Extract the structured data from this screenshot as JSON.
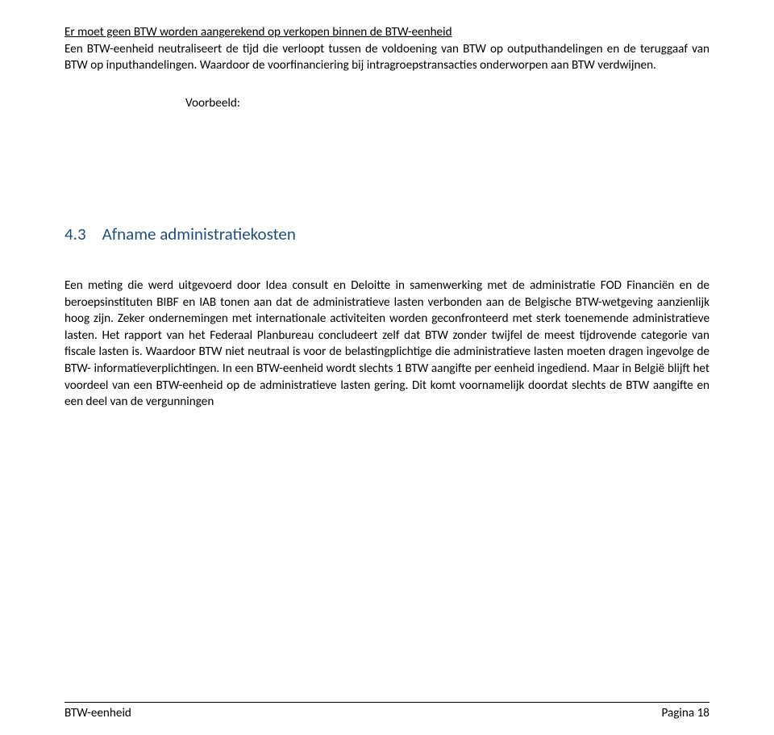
{
  "intro": {
    "underlined": "Er moet geen BTW worden aangerekend op verkopen binnen de BTW-eenheid",
    "paragraph": "Een BTW-eenheid neutraliseert de tijd die verloopt tussen de voldoening van BTW op outputhandelingen en de teruggaaf van BTW op inputhandelingen. Waardoor de voorfinanciering bij intragroepstransacties onderworpen aan BTW verdwijnen."
  },
  "voorbeeld_label": "Voorbeeld:",
  "section": {
    "number": "4.3",
    "title": "Afname administratiekosten",
    "heading_color": "#1f4e79",
    "heading_fontsize": 21
  },
  "body": "Een meting die werd uitgevoerd door Idea consult en Deloitte in samenwerking met de administratie FOD Financiën en de beroepsinstituten BIBF en IAB tonen aan dat de administratieve lasten verbonden aan de Belgische BTW-wetgeving aanzienlijk hoog zijn. Zeker ondernemingen met internationale activiteiten worden geconfronteerd met sterk toenemende administratieve lasten. Het rapport van het Federaal Planbureau concludeert zelf dat BTW zonder twijfel de meest tijdrovende categorie van fiscale lasten is. Waardoor BTW niet neutraal is voor de belastingplichtige die administratieve lasten moeten dragen ingevolge de BTW- informatieverplichtingen. In een BTW-eenheid wordt slechts 1 BTW aangifte per eenheid ingediend. Maar in België blijft het voordeel van een BTW-eenheid op de administratieve lasten gering. Dit komt voornamelijk doordat slechts de BTW aangifte en een deel van de vergunningen",
  "footer": {
    "left": "BTW-eenheid",
    "right": "Pagina 18"
  },
  "colors": {
    "text": "#000000",
    "background": "#ffffff",
    "heading": "#1f4e79",
    "rule": "#000000"
  },
  "typography": {
    "body_fontsize": 15.2,
    "body_lineheight": 1.35,
    "font_family": "Calibri"
  }
}
